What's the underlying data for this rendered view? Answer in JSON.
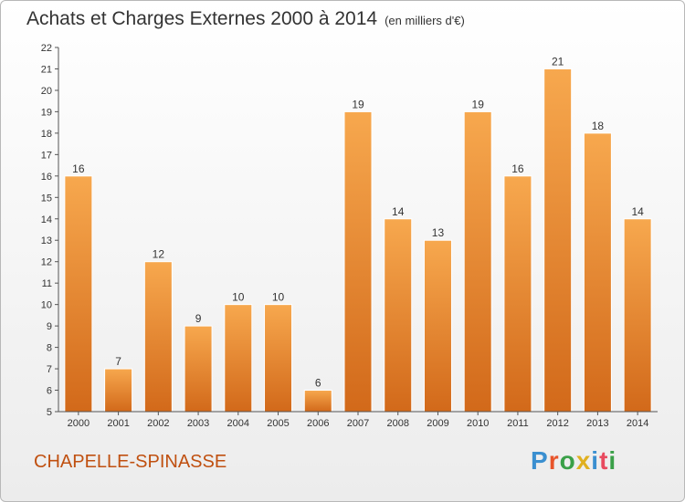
{
  "title": "Achats et Charges Externes 2000 à 2014",
  "subtitle": "(en milliers d'€)",
  "commune": "CHAPELLE-SPINASSE",
  "logo": {
    "text": "Proxiti",
    "letter_colors": [
      "#3a8fd0",
      "#e8542a",
      "#3aa048",
      "#e0b020",
      "#3a8fd0",
      "#e84a5f",
      "#3aa048"
    ]
  },
  "colors": {
    "bar_light": "#f7a84e",
    "bar_dark": "#d2691a",
    "axis": "#555555",
    "title": "#333333",
    "commune": "#c05010"
  },
  "chart_data": {
    "type": "bar",
    "categories": [
      "2000",
      "2001",
      "2002",
      "2003",
      "2004",
      "2005",
      "2006",
      "2007",
      "2008",
      "2009",
      "2010",
      "2011",
      "2012",
      "2013",
      "2014"
    ],
    "values": [
      16,
      7,
      12,
      9,
      10,
      10,
      6,
      19,
      14,
      13,
      19,
      16,
      21,
      18,
      14
    ],
    "ylim": [
      5,
      22
    ],
    "yticks": [
      5,
      6,
      7,
      8,
      9,
      10,
      11,
      12,
      13,
      14,
      15,
      16,
      17,
      18,
      19,
      20,
      21,
      22
    ],
    "title": "Achats et Charges Externes 2000 à 2014",
    "xlabel": "",
    "ylabel": "",
    "grid": false
  }
}
